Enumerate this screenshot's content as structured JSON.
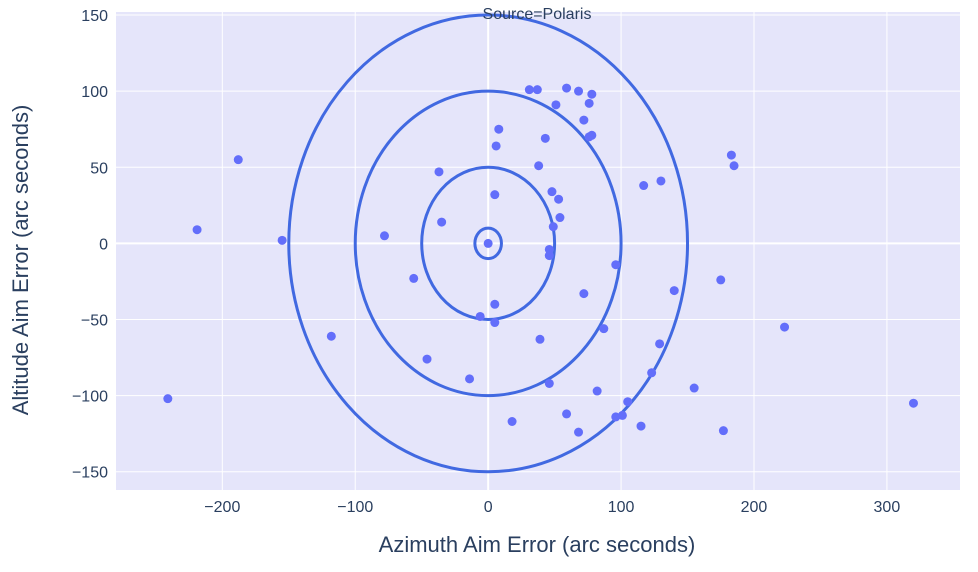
{
  "chart_data": {
    "type": "scatter",
    "title": "Source=Polaris",
    "xlabel": "Azimuth Aim Error (arc seconds)",
    "ylabel": "Altitude Aim Error (arc seconds)",
    "xlim": [
      -280,
      355
    ],
    "ylim": [
      -162,
      152
    ],
    "xticks": [
      -200,
      -100,
      0,
      100,
      200,
      300
    ],
    "xtick_labels": [
      "−200",
      "−100",
      "0",
      "100",
      "200",
      "300"
    ],
    "yticks": [
      -150,
      -100,
      -50,
      0,
      50,
      100,
      150
    ],
    "ytick_labels": [
      "−150",
      "−100",
      "−50",
      "0",
      "50",
      "100",
      "150"
    ],
    "grid": true,
    "colors": {
      "plot_background": "#e5e5fa",
      "grid": "#ffffff",
      "points": "#636efa",
      "rings": "#4169e1",
      "text": "#2a3f5f"
    },
    "rings": [
      {
        "rx": 10,
        "ry": 10
      },
      {
        "rx": 50,
        "ry": 50
      },
      {
        "rx": 100,
        "ry": 100
      },
      {
        "rx": 150,
        "ry": 150
      }
    ],
    "points": [
      {
        "x": 31,
        "y": 101
      },
      {
        "x": 37,
        "y": 101
      },
      {
        "x": 59,
        "y": 102
      },
      {
        "x": 68,
        "y": 100
      },
      {
        "x": 78,
        "y": 98
      },
      {
        "x": 51,
        "y": 91
      },
      {
        "x": 76,
        "y": 92
      },
      {
        "x": 72,
        "y": 81
      },
      {
        "x": 8,
        "y": 75
      },
      {
        "x": 78,
        "y": 71
      },
      {
        "x": 76,
        "y": 70
      },
      {
        "x": 43,
        "y": 69
      },
      {
        "x": 6,
        "y": 64
      },
      {
        "x": 38,
        "y": 51
      },
      {
        "x": -37,
        "y": 47
      },
      {
        "x": 183,
        "y": 58
      },
      {
        "x": 185,
        "y": 51
      },
      {
        "x": -188,
        "y": 55
      },
      {
        "x": 130,
        "y": 41
      },
      {
        "x": 117,
        "y": 38
      },
      {
        "x": 48,
        "y": 34
      },
      {
        "x": 5,
        "y": 32
      },
      {
        "x": 53,
        "y": 29
      },
      {
        "x": 54,
        "y": 17
      },
      {
        "x": -35,
        "y": 14
      },
      {
        "x": 49,
        "y": 11
      },
      {
        "x": -219,
        "y": 9
      },
      {
        "x": -155,
        "y": 2
      },
      {
        "x": -78,
        "y": 5
      },
      {
        "x": 0,
        "y": 0
      },
      {
        "x": 46,
        "y": -4
      },
      {
        "x": 46,
        "y": -8
      },
      {
        "x": 96,
        "y": -14
      },
      {
        "x": -56,
        "y": -23
      },
      {
        "x": 175,
        "y": -24
      },
      {
        "x": 140,
        "y": -31
      },
      {
        "x": 72,
        "y": -33
      },
      {
        "x": 5,
        "y": -40
      },
      {
        "x": -6,
        "y": -48
      },
      {
        "x": 5,
        "y": -52
      },
      {
        "x": 87,
        "y": -56
      },
      {
        "x": 223,
        "y": -55
      },
      {
        "x": -118,
        "y": -61
      },
      {
        "x": 39,
        "y": -63
      },
      {
        "x": 129,
        "y": -66
      },
      {
        "x": -46,
        "y": -76
      },
      {
        "x": 123,
        "y": -85
      },
      {
        "x": -14,
        "y": -89
      },
      {
        "x": 46,
        "y": -92
      },
      {
        "x": 82,
        "y": -97
      },
      {
        "x": 155,
        "y": -95
      },
      {
        "x": -241,
        "y": -102
      },
      {
        "x": 320,
        "y": -105
      },
      {
        "x": 105,
        "y": -104
      },
      {
        "x": 59,
        "y": -112
      },
      {
        "x": 96,
        "y": -114
      },
      {
        "x": 101,
        "y": -113
      },
      {
        "x": 18,
        "y": -117
      },
      {
        "x": 115,
        "y": -120
      },
      {
        "x": 68,
        "y": -124
      },
      {
        "x": 177,
        "y": -123
      }
    ]
  }
}
